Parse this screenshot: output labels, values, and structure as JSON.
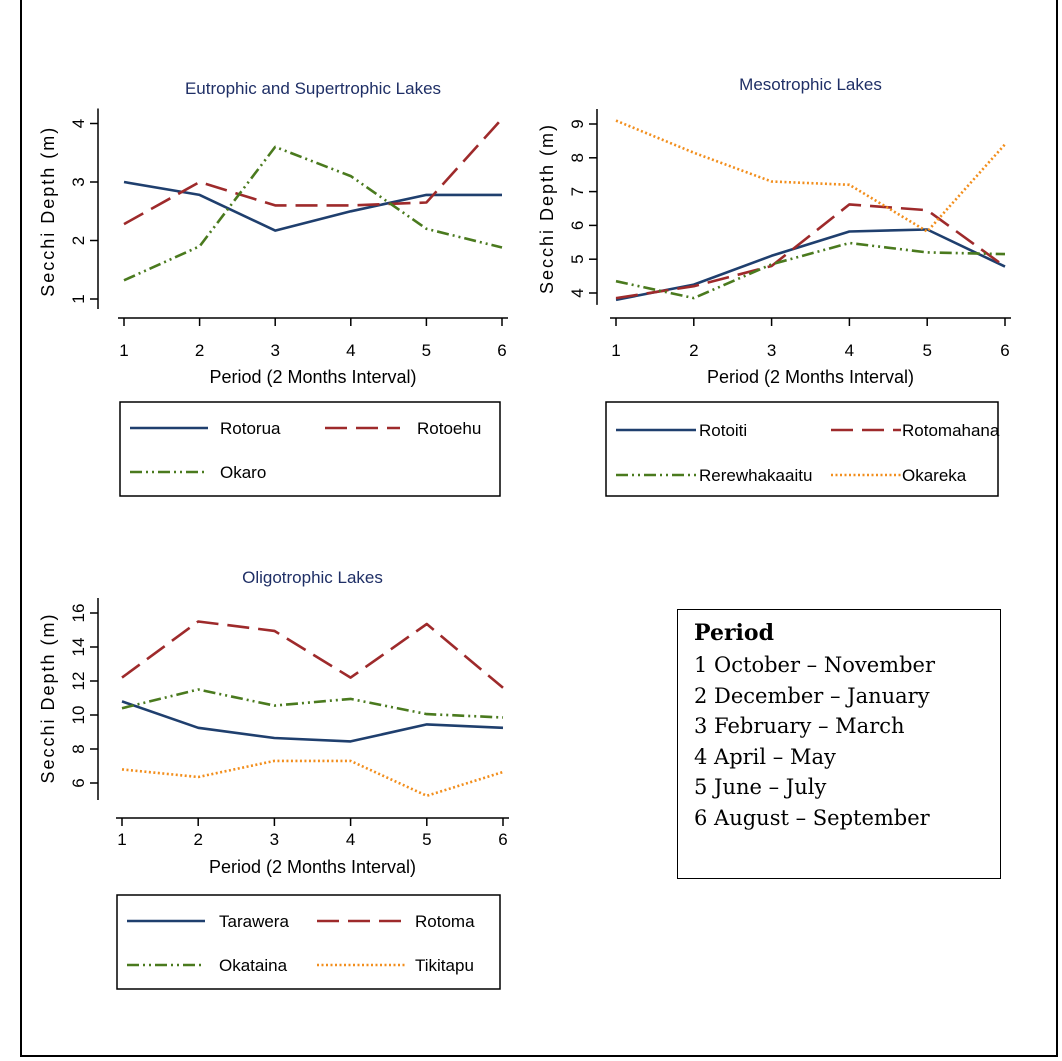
{
  "chart_data": [
    {
      "type": "line",
      "title": "Eutrophic and Supertrophic Lakes",
      "xlabel": "Period (2 Months Interval)",
      "ylabel": "Secchi Depth (m)",
      "x": [
        1,
        2,
        3,
        4,
        5,
        6
      ],
      "xlim": [
        1,
        6
      ],
      "ylim": [
        0.85,
        4.2
      ],
      "yticks": [
        1,
        2,
        3,
        4
      ],
      "grid": false,
      "legend_position": "below",
      "series": [
        {
          "name": "Rotorua",
          "values": [
            3.0,
            2.78,
            2.17,
            2.5,
            2.78,
            2.78
          ],
          "color": "#1f3f6e",
          "style": "solid"
        },
        {
          "name": "Rotoehu",
          "values": [
            2.28,
            3.0,
            2.6,
            2.6,
            2.65,
            4.08
          ],
          "color": "#9e2a2b",
          "style": "dashed"
        },
        {
          "name": "Okaro",
          "values": [
            1.32,
            1.9,
            3.6,
            3.1,
            2.2,
            1.88
          ],
          "color": "#4a7a1e",
          "style": "dashdot"
        }
      ]
    },
    {
      "type": "line",
      "title": "Mesotrophic Lakes",
      "xlabel": "Period (2 Months Interval)",
      "ylabel": "Secchi Depth (m)",
      "x": [
        1,
        2,
        3,
        4,
        5,
        6
      ],
      "xlim": [
        1,
        6
      ],
      "ylim": [
        3.65,
        9.1
      ],
      "yticks": [
        4,
        5,
        6,
        7,
        8,
        9
      ],
      "grid": false,
      "legend_position": "below",
      "series": [
        {
          "name": "Rotoiti",
          "values": [
            3.8,
            4.25,
            5.1,
            5.82,
            5.88,
            4.78
          ],
          "color": "#1f3f6e",
          "style": "solid"
        },
        {
          "name": "Rotomahana",
          "values": [
            3.85,
            4.2,
            4.8,
            6.62,
            6.45,
            4.78
          ],
          "color": "#9e2a2b",
          "style": "dashed"
        },
        {
          "name": "Rerewhakaaitu",
          "values": [
            4.35,
            3.85,
            4.85,
            5.48,
            5.2,
            5.15
          ],
          "color": "#4a7a1e",
          "style": "dashdot"
        },
        {
          "name": "Okareka",
          "values": [
            9.1,
            8.15,
            7.3,
            7.2,
            5.82,
            8.4
          ],
          "color": "#f28e1c",
          "style": "dotted"
        }
      ]
    },
    {
      "type": "line",
      "title": "Oligotrophic Lakes",
      "xlabel": "Period (2 Months Interval)",
      "ylabel": "Secchi Depth (m)",
      "x": [
        1,
        2,
        3,
        4,
        5,
        6
      ],
      "xlim": [
        1,
        6
      ],
      "ylim": [
        5.0,
        16.4
      ],
      "yticks": [
        6,
        8,
        10,
        12,
        14,
        16
      ],
      "grid": false,
      "legend_position": "below",
      "series": [
        {
          "name": "Tarawera",
          "values": [
            10.8,
            9.25,
            8.65,
            8.45,
            9.45,
            9.25
          ],
          "color": "#1f3f6e",
          "style": "solid"
        },
        {
          "name": "Rotoma",
          "values": [
            12.2,
            15.5,
            14.95,
            12.2,
            15.35,
            11.6
          ],
          "color": "#9e2a2b",
          "style": "dashed"
        },
        {
          "name": "Okataina",
          "values": [
            10.4,
            11.5,
            10.55,
            10.95,
            10.05,
            9.85
          ],
          "color": "#4a7a1e",
          "style": "dashdot"
        },
        {
          "name": "Tikitapu",
          "values": [
            6.8,
            6.35,
            7.3,
            7.3,
            5.25,
            6.65
          ],
          "color": "#f28e1c",
          "style": "dotted"
        }
      ]
    }
  ],
  "period_box": {
    "title": "Period",
    "items": [
      "1  October – November",
      "2  December – January",
      "3  February – March",
      "4  April – May",
      "5  June – July",
      "6  August – September"
    ]
  }
}
